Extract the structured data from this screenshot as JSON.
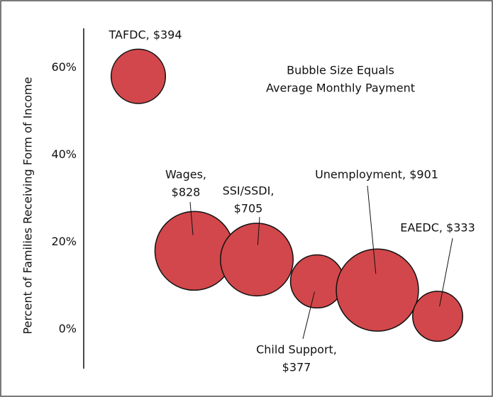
{
  "chart_data": {
    "type": "bubble",
    "y_label": "Percent of Families Receiving Form of Income",
    "annotation": [
      "Bubble Size Equals",
      "Average Monthly Payment"
    ],
    "labels": [
      [
        "TAFDC, $394"
      ],
      [
        "Wages,",
        "$828"
      ],
      [
        "SSI/SSDI,",
        "$705"
      ],
      [
        "Child Support,",
        "$377"
      ],
      [
        "Unemployment, $901"
      ],
      [
        "EAEDC, $333"
      ]
    ],
    "values": [
      58,
      18,
      16,
      11,
      9,
      3
    ],
    "sizes": [
      394,
      828,
      705,
      377,
      901,
      333
    ],
    "color": "#d2474b",
    "ylim": [
      -9,
      69
    ],
    "yticks": [
      {
        "value": 0,
        "label": "0%"
      },
      {
        "value": 20,
        "label": "20%"
      },
      {
        "value": 40,
        "label": "40%"
      },
      {
        "value": 60,
        "label": "60%"
      }
    ]
  }
}
